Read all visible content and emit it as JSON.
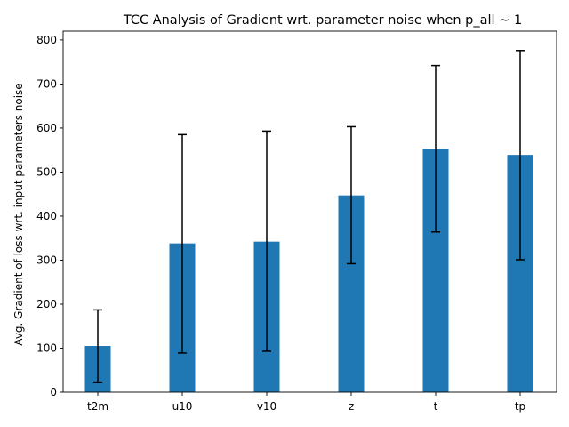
{
  "chart_data": {
    "type": "bar",
    "title": "TCC Analysis of Gradient wrt. parameter noise when p_all ~ 1",
    "xlabel": "",
    "ylabel": "Avg. Gradient of loss wrt. input parameters noise",
    "categories": [
      "t2m",
      "u10",
      "v10",
      "z",
      "t",
      "tp"
    ],
    "values": [
      105,
      338,
      342,
      447,
      553,
      539
    ],
    "error_low": [
      23,
      89,
      93,
      292,
      364,
      301
    ],
    "error_high": [
      187,
      585,
      593,
      603,
      742,
      776
    ],
    "ylim": [
      0,
      820
    ],
    "yticks": [
      0,
      100,
      200,
      300,
      400,
      500,
      600,
      700,
      800
    ],
    "grid": false,
    "legend": "none",
    "bar_color": "#1f77b4",
    "error_color": "#000000"
  }
}
